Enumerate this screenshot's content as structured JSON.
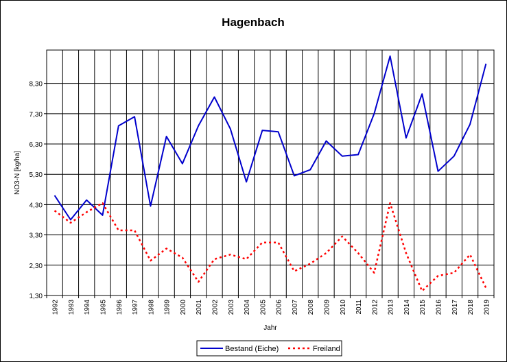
{
  "chart_data": {
    "type": "line",
    "title": "Hagenbach",
    "xlabel": "Jahr",
    "ylabel": "NO3-N [kg/ha]",
    "x": [
      "1992",
      "1993",
      "1994",
      "1995",
      "1996",
      "1997",
      "1998",
      "1999",
      "2000",
      "2001",
      "2002",
      "2003",
      "2004",
      "2005",
      "2006",
      "2007",
      "2008",
      "2009",
      "2010",
      "2011",
      "2012",
      "2013",
      "2014",
      "2015",
      "2016",
      "2017",
      "2018",
      "2019"
    ],
    "y_ticks": [
      "1,30",
      "2,30",
      "3,30",
      "4,30",
      "5,30",
      "6,30",
      "7,30",
      "8,30"
    ],
    "y_tick_values": [
      1.3,
      2.3,
      3.3,
      4.3,
      5.3,
      6.3,
      7.3,
      8.3
    ],
    "ylim": [
      1.3,
      9.4
    ],
    "grid": true,
    "legend_position": "bottom-center",
    "series": [
      {
        "name": "Bestand (Eiche)",
        "color": "#0000cc",
        "style": "solid",
        "values": [
          4.6,
          3.8,
          4.45,
          3.95,
          6.9,
          7.2,
          4.25,
          6.55,
          5.65,
          6.9,
          7.85,
          6.8,
          5.05,
          6.75,
          6.7,
          5.25,
          5.45,
          6.4,
          5.9,
          5.95,
          7.3,
          9.2,
          6.5,
          7.95,
          5.4,
          5.9,
          6.95,
          8.95
        ]
      },
      {
        "name": "Freiland",
        "color": "#ff0000",
        "style": "dotted",
        "values": [
          4.1,
          3.7,
          4.05,
          4.35,
          3.45,
          3.45,
          2.45,
          2.85,
          2.55,
          1.75,
          2.5,
          2.65,
          2.5,
          3.05,
          3.05,
          2.1,
          2.35,
          2.7,
          3.25,
          2.7,
          2.05,
          4.35,
          2.7,
          1.45,
          1.95,
          2.05,
          2.65,
          1.55
        ]
      }
    ]
  }
}
